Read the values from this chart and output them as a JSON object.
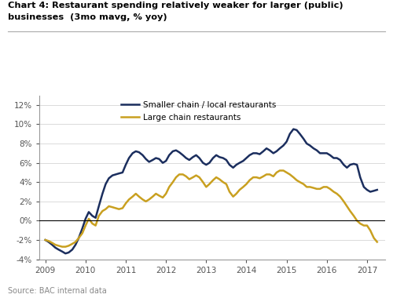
{
  "title_line1": "Chart 4: Restaurant spending relatively weaker for larger (public)",
  "title_line2": "businesses  (3mo mavg, % yoy)",
  "source": "Source: BAC internal data",
  "legend": [
    "Smaller chain / local restaurants",
    "Large chain restaurants"
  ],
  "colors": [
    "#1b2e5e",
    "#c9a020"
  ],
  "ylim": [
    -4,
    13
  ],
  "yticks": [
    -4,
    -2,
    0,
    2,
    4,
    6,
    8,
    10,
    12
  ],
  "ytick_labels": [
    "-4%",
    "-2%",
    "0%",
    "2%",
    "4%",
    "6%",
    "8%",
    "10%",
    "12%"
  ],
  "xlim_start": 2008.85,
  "xlim_end": 2017.45,
  "xtick_positions": [
    2009,
    2010,
    2011,
    2012,
    2013,
    2014,
    2015,
    2016,
    2017
  ],
  "small_x": [
    2009.0,
    2009.08,
    2009.17,
    2009.25,
    2009.33,
    2009.42,
    2009.5,
    2009.58,
    2009.67,
    2009.75,
    2009.83,
    2009.92,
    2010.0,
    2010.08,
    2010.17,
    2010.25,
    2010.33,
    2010.42,
    2010.5,
    2010.58,
    2010.67,
    2010.75,
    2010.83,
    2010.92,
    2011.0,
    2011.08,
    2011.17,
    2011.25,
    2011.33,
    2011.42,
    2011.5,
    2011.58,
    2011.67,
    2011.75,
    2011.83,
    2011.92,
    2012.0,
    2012.08,
    2012.17,
    2012.25,
    2012.33,
    2012.42,
    2012.5,
    2012.58,
    2012.67,
    2012.75,
    2012.83,
    2012.92,
    2013.0,
    2013.08,
    2013.17,
    2013.25,
    2013.33,
    2013.42,
    2013.5,
    2013.58,
    2013.67,
    2013.75,
    2013.83,
    2013.92,
    2014.0,
    2014.08,
    2014.17,
    2014.25,
    2014.33,
    2014.42,
    2014.5,
    2014.58,
    2014.67,
    2014.75,
    2014.83,
    2014.92,
    2015.0,
    2015.08,
    2015.17,
    2015.25,
    2015.33,
    2015.42,
    2015.5,
    2015.58,
    2015.67,
    2015.75,
    2015.83,
    2015.92,
    2016.0,
    2016.08,
    2016.17,
    2016.25,
    2016.33,
    2016.42,
    2016.5,
    2016.58,
    2016.67,
    2016.75,
    2016.83,
    2016.92,
    2017.0,
    2017.08,
    2017.17,
    2017.25
  ],
  "small_y": [
    -2.0,
    -2.2,
    -2.5,
    -2.8,
    -3.0,
    -3.2,
    -3.4,
    -3.3,
    -3.0,
    -2.5,
    -1.8,
    -0.8,
    0.2,
    0.9,
    0.5,
    0.3,
    1.5,
    2.8,
    3.8,
    4.4,
    4.7,
    4.8,
    4.9,
    5.0,
    5.8,
    6.5,
    7.0,
    7.2,
    7.1,
    6.8,
    6.4,
    6.1,
    6.3,
    6.5,
    6.4,
    6.0,
    6.2,
    6.8,
    7.2,
    7.3,
    7.1,
    6.8,
    6.5,
    6.3,
    6.6,
    6.8,
    6.5,
    6.0,
    5.8,
    6.0,
    6.5,
    6.8,
    6.6,
    6.5,
    6.3,
    5.8,
    5.5,
    5.8,
    6.0,
    6.2,
    6.5,
    6.8,
    7.0,
    7.0,
    6.9,
    7.2,
    7.5,
    7.3,
    7.0,
    7.2,
    7.5,
    7.8,
    8.2,
    9.0,
    9.5,
    9.4,
    9.0,
    8.5,
    8.0,
    7.8,
    7.5,
    7.3,
    7.0,
    7.0,
    7.0,
    6.8,
    6.5,
    6.5,
    6.3,
    5.8,
    5.5,
    5.8,
    5.9,
    5.8,
    4.5,
    3.5,
    3.2,
    3.0,
    3.1,
    3.2
  ],
  "large_x": [
    2009.0,
    2009.08,
    2009.17,
    2009.25,
    2009.33,
    2009.42,
    2009.5,
    2009.58,
    2009.67,
    2009.75,
    2009.83,
    2009.92,
    2010.0,
    2010.08,
    2010.17,
    2010.25,
    2010.33,
    2010.42,
    2010.5,
    2010.58,
    2010.67,
    2010.75,
    2010.83,
    2010.92,
    2011.0,
    2011.08,
    2011.17,
    2011.25,
    2011.33,
    2011.42,
    2011.5,
    2011.58,
    2011.67,
    2011.75,
    2011.83,
    2011.92,
    2012.0,
    2012.08,
    2012.17,
    2012.25,
    2012.33,
    2012.42,
    2012.5,
    2012.58,
    2012.67,
    2012.75,
    2012.83,
    2012.92,
    2013.0,
    2013.08,
    2013.17,
    2013.25,
    2013.33,
    2013.42,
    2013.5,
    2013.58,
    2013.67,
    2013.75,
    2013.83,
    2013.92,
    2014.0,
    2014.08,
    2014.17,
    2014.25,
    2014.33,
    2014.42,
    2014.5,
    2014.58,
    2014.67,
    2014.75,
    2014.83,
    2014.92,
    2015.0,
    2015.08,
    2015.17,
    2015.25,
    2015.33,
    2015.42,
    2015.5,
    2015.58,
    2015.67,
    2015.75,
    2015.83,
    2015.92,
    2016.0,
    2016.08,
    2016.17,
    2016.25,
    2016.33,
    2016.42,
    2016.5,
    2016.58,
    2016.67,
    2016.75,
    2016.83,
    2016.92,
    2017.0,
    2017.08,
    2017.17,
    2017.25
  ],
  "large_y": [
    -2.0,
    -2.1,
    -2.3,
    -2.5,
    -2.6,
    -2.7,
    -2.7,
    -2.6,
    -2.4,
    -2.2,
    -1.8,
    -1.3,
    -0.5,
    0.2,
    -0.3,
    -0.5,
    0.5,
    1.0,
    1.2,
    1.5,
    1.4,
    1.3,
    1.2,
    1.3,
    1.8,
    2.2,
    2.5,
    2.8,
    2.5,
    2.2,
    2.0,
    2.2,
    2.5,
    2.8,
    2.6,
    2.4,
    2.8,
    3.5,
    4.0,
    4.5,
    4.8,
    4.8,
    4.6,
    4.3,
    4.5,
    4.7,
    4.5,
    4.0,
    3.5,
    3.8,
    4.2,
    4.5,
    4.3,
    4.0,
    3.8,
    3.0,
    2.5,
    2.8,
    3.2,
    3.5,
    3.8,
    4.2,
    4.5,
    4.5,
    4.4,
    4.6,
    4.8,
    4.8,
    4.6,
    5.0,
    5.2,
    5.2,
    5.0,
    4.8,
    4.5,
    4.2,
    4.0,
    3.8,
    3.5,
    3.5,
    3.4,
    3.3,
    3.3,
    3.5,
    3.5,
    3.3,
    3.0,
    2.8,
    2.5,
    2.0,
    1.5,
    1.0,
    0.5,
    0.0,
    -0.3,
    -0.5,
    -0.5,
    -1.0,
    -1.8,
    -2.2
  ]
}
